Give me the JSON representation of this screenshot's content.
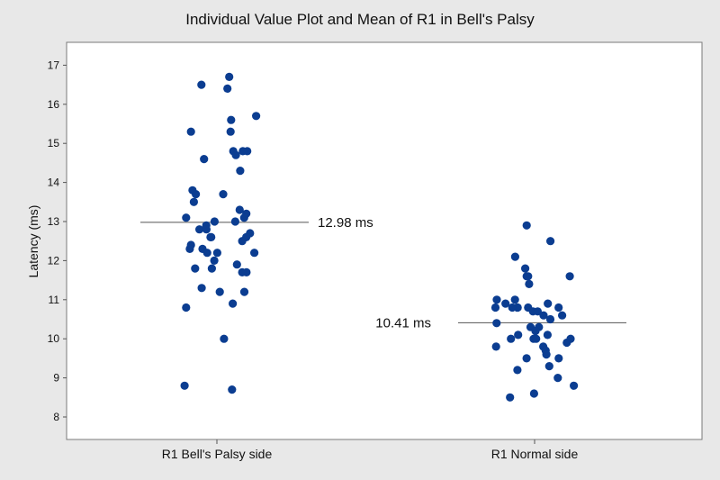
{
  "chart_data": {
    "type": "scatter",
    "title": "Individual Value Plot and Mean of R1 in Bell's Palsy",
    "ylabel": "Latency (ms)",
    "xlabel": "",
    "ylim": [
      7.7,
      17.5
    ],
    "yticks": [
      8,
      9,
      10,
      11,
      12,
      13,
      14,
      15,
      16,
      17
    ],
    "grid": false,
    "categories": [
      "R1 Bell's Palsy side",
      "R1 Normal side"
    ],
    "point_color": "#0b3d91",
    "series": [
      {
        "category": "R1 Bell's Palsy side",
        "mean": 12.98,
        "mean_label": "12.98 ms",
        "values": [
          16.7,
          16.5,
          16.4,
          15.7,
          15.6,
          15.3,
          15.3,
          14.8,
          14.8,
          14.8,
          14.7,
          14.6,
          14.3,
          13.8,
          13.7,
          13.7,
          13.5,
          13.3,
          13.2,
          13.1,
          13.1,
          13.0,
          13.0,
          12.9,
          12.8,
          12.8,
          12.7,
          12.6,
          12.6,
          12.6,
          12.5,
          12.4,
          12.3,
          12.3,
          12.2,
          12.2,
          12.2,
          12.0,
          11.9,
          11.8,
          11.8,
          11.7,
          11.7,
          11.3,
          11.2,
          11.2,
          10.9,
          10.8,
          10.0,
          8.8,
          8.7
        ]
      },
      {
        "category": "R1 Normal side",
        "mean": 10.41,
        "mean_label": "10.41 ms",
        "values": [
          12.9,
          12.5,
          12.1,
          11.8,
          11.6,
          11.6,
          11.6,
          11.4,
          11.0,
          11.0,
          10.9,
          10.9,
          10.8,
          10.8,
          10.8,
          10.8,
          10.8,
          10.8,
          10.7,
          10.7,
          10.6,
          10.6,
          10.5,
          10.4,
          10.3,
          10.3,
          10.2,
          10.1,
          10.1,
          10.0,
          10.0,
          10.0,
          10.0,
          9.9,
          9.8,
          9.8,
          9.7,
          9.6,
          9.5,
          9.5,
          9.3,
          9.2,
          9.0,
          8.8,
          8.6,
          8.5
        ]
      }
    ]
  }
}
